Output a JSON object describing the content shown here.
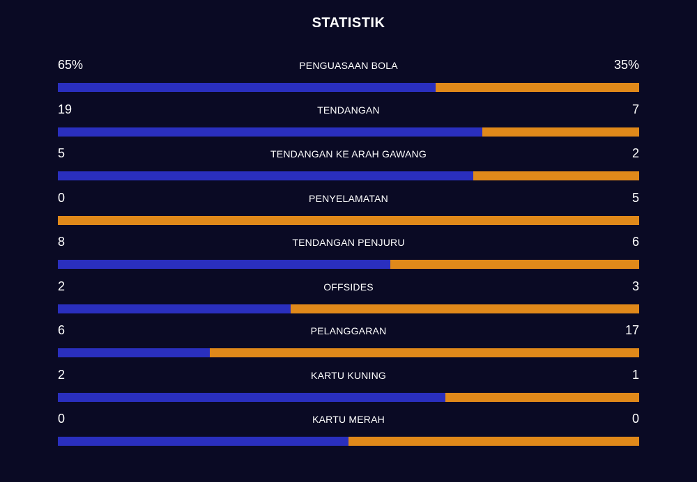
{
  "title": "STATISTIK",
  "colors": {
    "home": "#2a2fbe",
    "away": "#e0891a",
    "background": "#0a0a24"
  },
  "stats": [
    {
      "label": "PENGUASAAN BOLA",
      "home": "65%",
      "away": "35%",
      "home_share": 0.65
    },
    {
      "label": "TENDANGAN",
      "home": "19",
      "away": "7",
      "home_share": 0.7308
    },
    {
      "label": "TENDANGAN KE ARAH GAWANG",
      "home": "5",
      "away": "2",
      "home_share": 0.7143
    },
    {
      "label": "PENYELAMATAN",
      "home": "0",
      "away": "5",
      "home_share": 0
    },
    {
      "label": "TENDANGAN PENJURU",
      "home": "8",
      "away": "6",
      "home_share": 0.5714
    },
    {
      "label": "OFFSIDES",
      "home": "2",
      "away": "3",
      "home_share": 0.4
    },
    {
      "label": "PELANGGARAN",
      "home": "6",
      "away": "17",
      "home_share": 0.2609
    },
    {
      "label": "KARTU KUNING",
      "home": "2",
      "away": "1",
      "home_share": 0.6667
    },
    {
      "label": "KARTU MERAH",
      "home": "0",
      "away": "0",
      "home_share": 0.5
    }
  ]
}
